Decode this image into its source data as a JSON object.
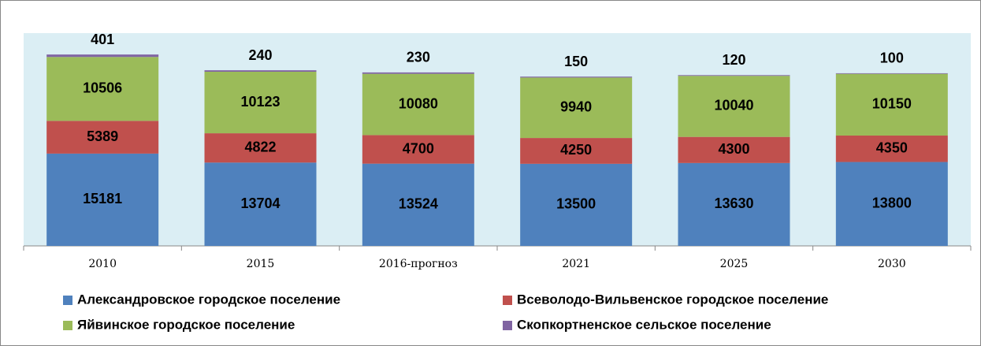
{
  "chart_data": {
    "type": "bar",
    "stacked": true,
    "categories": [
      "2010",
      "2015",
      "2016-прогноз",
      "2021",
      "2025",
      "2030"
    ],
    "series": [
      {
        "name": "Александровское городское поселение",
        "color": "#4f81bd",
        "values": [
          15181,
          13704,
          13524,
          13500,
          13630,
          13800
        ]
      },
      {
        "name": "Всеволодо-Вильвенское городское поселение",
        "color": "#c0504d",
        "values": [
          5389,
          4822,
          4700,
          4250,
          4300,
          4350
        ]
      },
      {
        "name": "Яйвинское городское поселение",
        "color": "#9bbb59",
        "values": [
          10506,
          10123,
          10080,
          9940,
          10040,
          10150
        ]
      },
      {
        "name": "Скопкортненское сельское поселение",
        "color": "#8064a2",
        "values": [
          401,
          240,
          230,
          150,
          120,
          100
        ]
      }
    ],
    "ylim": [
      0,
      35000
    ],
    "plot_background": "#dbeef4"
  }
}
